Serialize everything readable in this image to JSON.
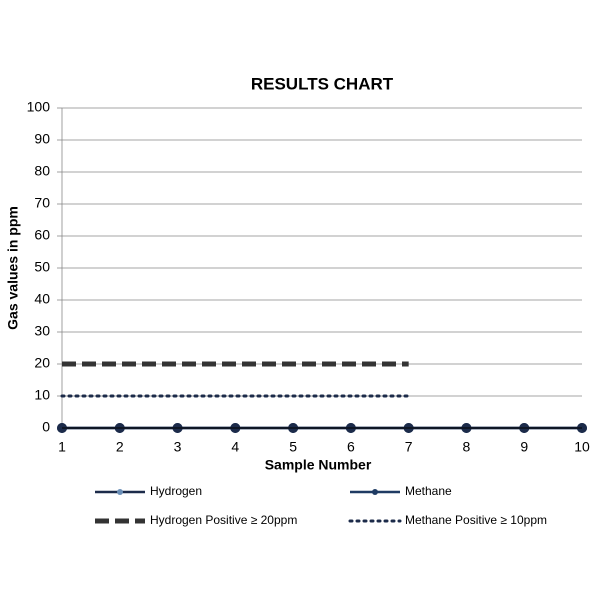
{
  "chart_data": {
    "type": "line",
    "title": "RESULTS CHART",
    "x_label": "Sample Number",
    "y_label": "Gas values in  ppm",
    "x": [
      1,
      2,
      3,
      4,
      5,
      6,
      7,
      8,
      9,
      10
    ],
    "series": [
      {
        "name": "Hydrogen",
        "color": "#1c2b4a",
        "style": "solid",
        "marker": true,
        "values": [
          0,
          0,
          0,
          0,
          0,
          0,
          0,
          0,
          0,
          0
        ]
      },
      {
        "name": "Methane",
        "color": "#1f3b63",
        "style": "solid",
        "marker": true,
        "values": [
          0,
          0,
          0,
          0,
          0,
          0,
          0,
          0,
          0,
          0
        ]
      },
      {
        "name": "Hydrogen Positive ≥ 20ppm",
        "color": "#333333",
        "style": "dashed",
        "marker": false,
        "values": [
          20,
          20,
          20,
          20,
          20,
          20,
          20,
          null,
          null,
          null
        ]
      },
      {
        "name": "Methane Positive ≥ 10ppm",
        "color": "#1c2b4a",
        "style": "dotted",
        "marker": false,
        "values": [
          10,
          10,
          10,
          10,
          10,
          10,
          10,
          null,
          null,
          null
        ]
      }
    ],
    "xlim": [
      1,
      10
    ],
    "xticks": [
      1,
      2,
      3,
      4,
      5,
      6,
      7,
      8,
      9,
      10
    ],
    "ylim": [
      0,
      100
    ],
    "yticks": [
      0,
      10,
      20,
      30,
      40,
      50,
      60,
      70,
      80,
      90,
      100
    ],
    "grid": true,
    "legend": "bottom"
  }
}
